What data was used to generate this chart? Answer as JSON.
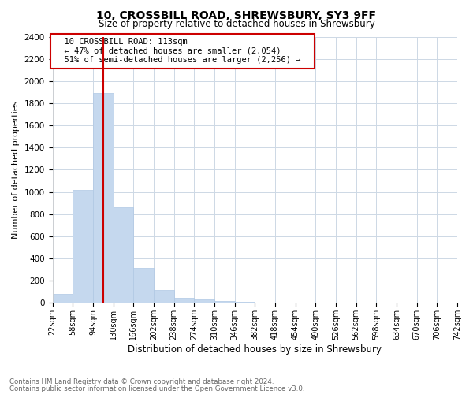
{
  "title1": "10, CROSSBILL ROAD, SHREWSBURY, SY3 9FF",
  "title2": "Size of property relative to detached houses in Shrewsbury",
  "xlabel": "Distribution of detached houses by size in Shrewsbury",
  "ylabel": "Number of detached properties",
  "annotation_line1": "10 CROSSBILL ROAD: 113sqm",
  "annotation_line2": "← 47% of detached houses are smaller (2,054)",
  "annotation_line3": "51% of semi-detached houses are larger (2,256) →",
  "bar_color": "#c5d8ee",
  "bar_edge_color": "#b0c8e4",
  "vline_color": "#cc0000",
  "vline_x": 113,
  "annotation_box_color": "#cc0000",
  "footer1": "Contains HM Land Registry data © Crown copyright and database right 2024.",
  "footer2": "Contains public sector information licensed under the Open Government Licence v3.0.",
  "bins": [
    22,
    58,
    94,
    130,
    166,
    202,
    238,
    274,
    310,
    346,
    382,
    418,
    454,
    490,
    526,
    562,
    598,
    634,
    670,
    706,
    742
  ],
  "counts": [
    80,
    1020,
    1890,
    860,
    315,
    120,
    43,
    30,
    20,
    12,
    5,
    3,
    2,
    2,
    1,
    1,
    0,
    0,
    0,
    0
  ],
  "ylim": [
    0,
    2400
  ],
  "yticks": [
    0,
    200,
    400,
    600,
    800,
    1000,
    1200,
    1400,
    1600,
    1800,
    2000,
    2200,
    2400
  ],
  "background_color": "#ffffff",
  "grid_color": "#cdd8e5"
}
